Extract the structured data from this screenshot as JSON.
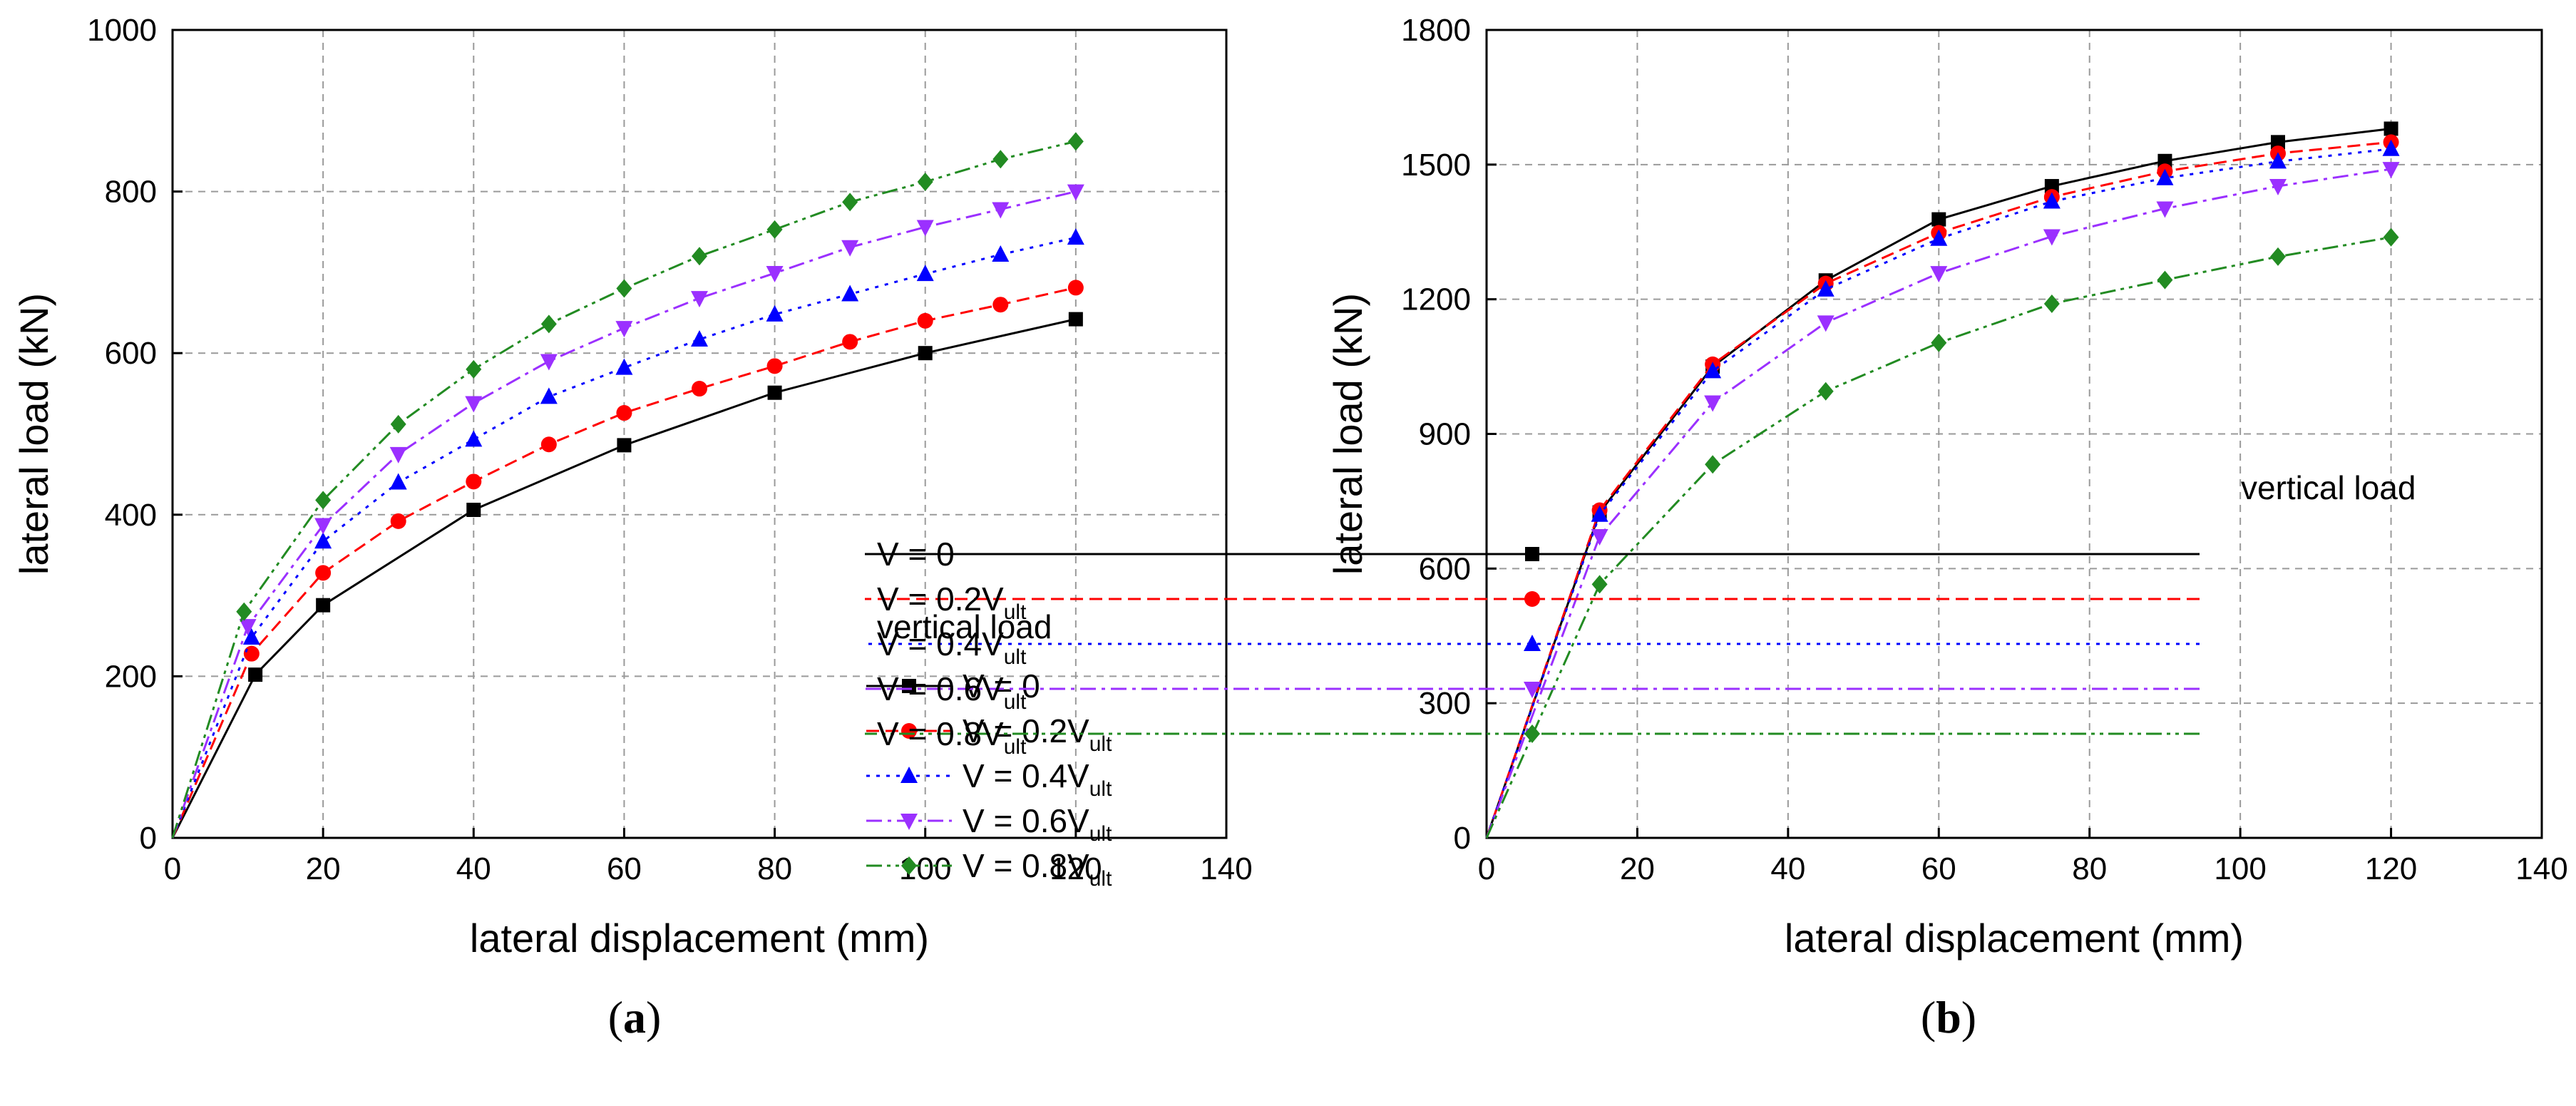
{
  "chart_data": [
    {
      "type": "line",
      "panel": "a",
      "caption": "(a)",
      "caption_letter": "a",
      "xlabel": "lateral displacement (mm)",
      "ylabel": "lateral load (kN)",
      "xlim": [
        0,
        140
      ],
      "ylim": [
        0,
        1000
      ],
      "xticks": [
        0,
        20,
        40,
        60,
        80,
        100,
        120,
        140
      ],
      "yticks": [
        0,
        200,
        400,
        600,
        800,
        1000
      ],
      "grid": true,
      "legend_title": "vertical load",
      "legend_position": "lower-right",
      "series": [
        {
          "name": "V = 0",
          "label_main": "V = 0",
          "label_sub": "",
          "color": "#000000",
          "marker": "square",
          "dash": "solid",
          "x": [
            0,
            11,
            20,
            40,
            60,
            80,
            100,
            120
          ],
          "y": [
            0,
            202,
            288,
            406,
            486,
            551,
            600,
            642
          ]
        },
        {
          "name": "V = 0.2Vult",
          "label_main": "V = 0.2V",
          "label_sub": "ult",
          "color": "#ff0000",
          "marker": "circle",
          "dash": "dash",
          "x": [
            0,
            10.5,
            20,
            30,
            40,
            50,
            60,
            70,
            80,
            90,
            100,
            110,
            120
          ],
          "y": [
            0,
            228,
            328,
            392,
            441,
            487,
            526,
            556,
            584,
            614,
            640,
            660,
            681
          ]
        },
        {
          "name": "V = 0.4Vult",
          "label_main": "V = 0.4V",
          "label_sub": "ult",
          "color": "#0000ff",
          "marker": "triangle-up",
          "dash": "dot",
          "x": [
            0,
            10.5,
            20,
            30,
            40,
            50,
            60,
            70,
            80,
            90,
            100,
            110,
            120
          ],
          "y": [
            0,
            248,
            367,
            440,
            493,
            546,
            582,
            617,
            648,
            673,
            698,
            722,
            743
          ]
        },
        {
          "name": "V = 0.6Vult",
          "label_main": "V = 0.6V",
          "label_sub": "ult",
          "color": "#9b30ff",
          "marker": "triangle-down",
          "dash": "dashdot",
          "x": [
            0,
            10,
            20,
            30,
            40,
            50,
            60,
            70,
            80,
            90,
            100,
            110,
            120
          ],
          "y": [
            0,
            262,
            387,
            475,
            538,
            590,
            631,
            668,
            699,
            731,
            756,
            778,
            800
          ]
        },
        {
          "name": "V = 0.8Vult",
          "label_main": "V = 0.8V",
          "label_sub": "ult",
          "color": "#228b22",
          "marker": "diamond",
          "dash": "dashdotdot",
          "x": [
            0,
            9.5,
            20,
            30,
            40,
            50,
            60,
            70,
            80,
            90,
            100,
            110,
            120
          ],
          "y": [
            0,
            280,
            418,
            512,
            580,
            636,
            680,
            720,
            753,
            787,
            812,
            840,
            862
          ]
        }
      ]
    },
    {
      "type": "line",
      "panel": "b",
      "caption": "(b)",
      "caption_letter": "b",
      "xlabel": "lateral displacement (mm)",
      "ylabel": "lateral load (kN)",
      "xlim": [
        0,
        140
      ],
      "ylim": [
        0,
        1800
      ],
      "xticks": [
        0,
        20,
        40,
        60,
        80,
        100,
        120,
        140
      ],
      "yticks": [
        0,
        300,
        600,
        900,
        1200,
        1500,
        1800
      ],
      "grid": true,
      "legend_title": "vertical load",
      "legend_position": "lower-right",
      "series": [
        {
          "name": "V = 0",
          "label_main": "V = 0",
          "label_sub": "",
          "color": "#000000",
          "marker": "square",
          "dash": "solid",
          "x": [
            0,
            15,
            30,
            45,
            60,
            75,
            90,
            105,
            120
          ],
          "y": [
            0,
            725,
            1050,
            1242,
            1378,
            1452,
            1508,
            1550,
            1580
          ]
        },
        {
          "name": "V = 0.2Vult",
          "label_main": "V = 0.2V",
          "label_sub": "ult",
          "color": "#ff0000",
          "marker": "circle",
          "dash": "dash",
          "x": [
            0,
            15,
            30,
            45,
            60,
            75,
            90,
            105,
            120
          ],
          "y": [
            0,
            730,
            1055,
            1235,
            1348,
            1428,
            1485,
            1525,
            1550
          ]
        },
        {
          "name": "V = 0.4Vult",
          "label_main": "V = 0.4V",
          "label_sub": "ult",
          "color": "#0000ff",
          "marker": "triangle-up",
          "dash": "dot",
          "x": [
            0,
            15,
            30,
            45,
            60,
            75,
            90,
            105,
            120
          ],
          "y": [
            0,
            720,
            1040,
            1222,
            1335,
            1418,
            1470,
            1507,
            1535
          ]
        },
        {
          "name": "V = 0.6Vult",
          "label_main": "V = 0.6V",
          "label_sub": "ult",
          "color": "#9b30ff",
          "marker": "triangle-down",
          "dash": "dashdot",
          "x": [
            0,
            15,
            30,
            45,
            60,
            75,
            90,
            105,
            120
          ],
          "y": [
            0,
            672,
            970,
            1148,
            1258,
            1340,
            1402,
            1452,
            1490
          ]
        },
        {
          "name": "V = 0.8Vult",
          "label_main": "V = 0.8V",
          "label_sub": "ult",
          "color": "#228b22",
          "marker": "diamond",
          "dash": "dashdotdot",
          "x": [
            0,
            15,
            30,
            45,
            60,
            75,
            90,
            105,
            120
          ],
          "y": [
            0,
            565,
            832,
            995,
            1103,
            1190,
            1243,
            1295,
            1338
          ]
        }
      ]
    }
  ]
}
